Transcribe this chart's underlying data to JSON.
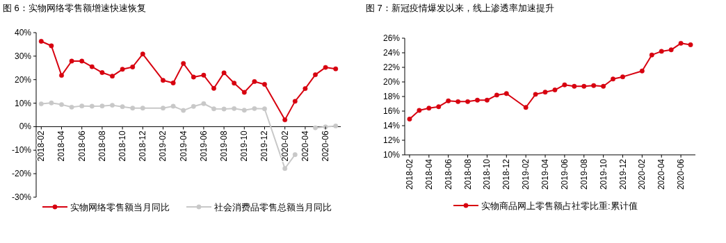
{
  "chart_data": [
    {
      "type": "line",
      "title": "图 6：实物网络零售额增速快速恢复",
      "x": [
        "2018-02",
        "2018-03",
        "2018-04",
        "2018-05",
        "2018-06",
        "2018-07",
        "2018-08",
        "2018-09",
        "2018-10",
        "2018-11",
        "2018-12",
        "2019-02",
        "2019-03",
        "2019-04",
        "2019-05",
        "2019-06",
        "2019-07",
        "2019-08",
        "2019-09",
        "2019-10",
        "2019-11",
        "2019-12",
        "2020-02",
        "2020-03",
        "2020-04",
        "2020-05",
        "2020-06",
        "2020-07"
      ],
      "series": [
        {
          "name": "实物网络零售额当月同比",
          "color": "#d7000f",
          "values": [
            36.3,
            34.4,
            21.8,
            27.9,
            27.9,
            25.5,
            23.0,
            21.5,
            24.4,
            25.4,
            30.9,
            19.7,
            18.6,
            26.9,
            21.1,
            21.9,
            16.3,
            22.9,
            18.5,
            14.6,
            19.2,
            18.0,
            2.9,
            10.8,
            16.2,
            22.1,
            25.2,
            24.6
          ]
        },
        {
          "name": "社会消费品零售总额当月同比",
          "color": "#c8c8c8",
          "values": [
            9.7,
            10.1,
            9.4,
            8.3,
            8.8,
            8.7,
            8.8,
            9.1,
            8.5,
            7.9,
            7.9,
            7.9,
            8.7,
            6.9,
            8.6,
            9.8,
            7.6,
            7.5,
            7.7,
            7.0,
            7.7,
            7.6,
            -17.8,
            -11.9,
            null,
            -0.5,
            -0.1,
            0.3
          ]
        }
      ],
      "xlim": [
        "2018-01-16",
        "2020-07-16"
      ],
      "xticks": [
        "2018-02",
        "2018-04",
        "2018-06",
        "2018-08",
        "2018-10",
        "2018-12",
        "2019-02",
        "2019-04",
        "2019-06",
        "2019-08",
        "2019-10",
        "2019-12",
        "2020-02",
        "2020-04",
        "2020-06"
      ],
      "ylim": [
        -30,
        40
      ],
      "yticks": [
        {
          "value": -30,
          "label": "-30%"
        },
        {
          "value": -20,
          "label": "-20%"
        },
        {
          "value": -10,
          "label": "-10%"
        },
        {
          "value": 0,
          "label": "0%"
        },
        {
          "value": 10,
          "label": "10%"
        },
        {
          "value": 20,
          "label": "20%"
        },
        {
          "value": 30,
          "label": "30%"
        },
        {
          "value": 40,
          "label": "40%"
        }
      ],
      "marker": "circle",
      "grid": false,
      "legend": "bottom"
    },
    {
      "type": "line",
      "title": "图 7：新冠疫情爆发以来，线上渗透率加速提升",
      "x": [
        "2018-02",
        "2018-03",
        "2018-04",
        "2018-05",
        "2018-06",
        "2018-07",
        "2018-08",
        "2018-09",
        "2018-10",
        "2018-11",
        "2018-12",
        "2019-02",
        "2019-03",
        "2019-04",
        "2019-05",
        "2019-06",
        "2019-07",
        "2019-08",
        "2019-09",
        "2019-10",
        "2019-11",
        "2019-12",
        "2020-02",
        "2020-03",
        "2020-04",
        "2020-05",
        "2020-06",
        "2020-07"
      ],
      "series": [
        {
          "name": "实物商品网上零售额占社零比重:累计值",
          "color": "#d7000f",
          "values": [
            14.9,
            16.1,
            16.4,
            16.6,
            17.4,
            17.3,
            17.3,
            17.5,
            17.5,
            18.2,
            18.4,
            16.5,
            18.3,
            18.6,
            18.9,
            19.6,
            19.4,
            19.4,
            19.5,
            19.4,
            20.4,
            20.7,
            21.5,
            23.7,
            24.2,
            24.4,
            25.3,
            25.1
          ]
        }
      ],
      "xlim": [
        "2018-01-16",
        "2020-07-16"
      ],
      "xticks": [
        "2018-02",
        "2018-04",
        "2018-06",
        "2018-08",
        "2018-10",
        "2018-12",
        "2019-02",
        "2019-04",
        "2019-06",
        "2019-08",
        "2019-10",
        "2019-12",
        "2020-02",
        "2020-04",
        "2020-06"
      ],
      "ylim": [
        10,
        26
      ],
      "yticks": [
        {
          "value": 10,
          "label": "10%"
        },
        {
          "value": 12,
          "label": "12%"
        },
        {
          "value": 14,
          "label": "14%"
        },
        {
          "value": 16,
          "label": "16%"
        },
        {
          "value": 18,
          "label": "18%"
        },
        {
          "value": 20,
          "label": "20%"
        },
        {
          "value": 22,
          "label": "22%"
        },
        {
          "value": 24,
          "label": "24%"
        },
        {
          "value": 26,
          "label": "26%"
        }
      ],
      "marker": "circle",
      "grid": false,
      "legend": "bottom"
    }
  ]
}
